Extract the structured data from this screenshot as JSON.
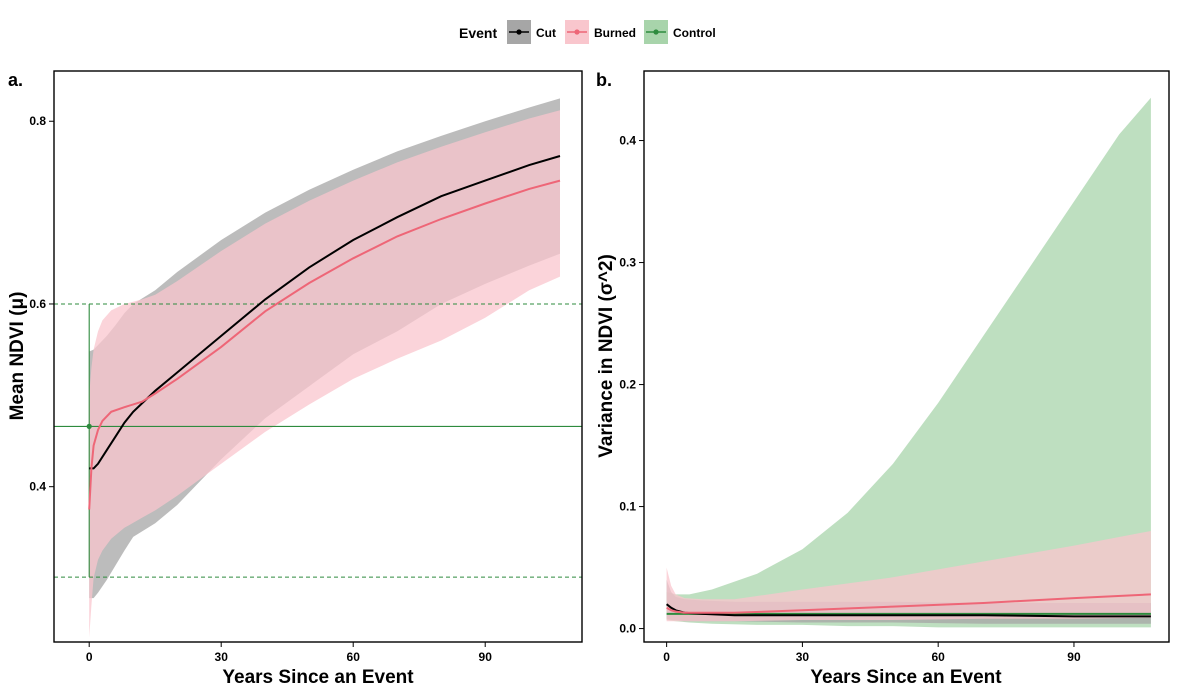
{
  "legend": {
    "title": "Event",
    "items": [
      {
        "label": "Cut",
        "line": "#000000",
        "fill": "#a6a6a6"
      },
      {
        "label": "Burned",
        "line": "#ee6677",
        "fill": "#f9c6cd"
      },
      {
        "label": "Control",
        "line": "#2e8b3e",
        "fill": "#a8d4ab"
      }
    ]
  },
  "chart_data": [
    {
      "type": "line",
      "panel_label": "a.",
      "xlabel": "Years Since an Event",
      "ylabel": "Mean NDVI (μ)",
      "xlim": [
        -8,
        112
      ],
      "ylim": [
        0.23,
        0.855
      ],
      "xticks": [
        0,
        30,
        60,
        90
      ],
      "yticks": [
        0.4,
        0.6,
        0.8
      ],
      "ytick_labels": [
        "0.4",
        "0.6",
        "0.8"
      ],
      "grid": false,
      "series": [
        {
          "name": "Cut",
          "color": "#000000",
          "band_color": "#a6a6a6",
          "x": [
            0,
            1,
            2,
            4,
            6,
            8,
            10,
            15,
            20,
            30,
            40,
            50,
            60,
            70,
            80,
            90,
            100,
            107
          ],
          "mean": [
            0.42,
            0.42,
            0.425,
            0.44,
            0.455,
            0.47,
            0.482,
            0.505,
            0.525,
            0.565,
            0.605,
            0.64,
            0.67,
            0.695,
            0.718,
            0.735,
            0.752,
            0.762
          ],
          "lower": [
            0.278,
            0.278,
            0.284,
            0.298,
            0.314,
            0.33,
            0.345,
            0.36,
            0.38,
            0.43,
            0.475,
            0.51,
            0.545,
            0.57,
            0.6,
            0.622,
            0.642,
            0.655
          ],
          "upper": [
            0.548,
            0.55,
            0.555,
            0.565,
            0.577,
            0.59,
            0.6,
            0.615,
            0.635,
            0.67,
            0.7,
            0.725,
            0.747,
            0.767,
            0.784,
            0.8,
            0.815,
            0.825
          ]
        },
        {
          "name": "Burned",
          "color": "#ee6677",
          "band_color": "#f9c6cd",
          "x": [
            0,
            0.5,
            1,
            2,
            3,
            5,
            8,
            12,
            15,
            20,
            30,
            40,
            50,
            60,
            70,
            80,
            90,
            100,
            107
          ],
          "mean": [
            0.375,
            0.42,
            0.445,
            0.462,
            0.472,
            0.482,
            0.487,
            0.493,
            0.502,
            0.518,
            0.553,
            0.592,
            0.623,
            0.65,
            0.674,
            0.693,
            0.71,
            0.726,
            0.735
          ],
          "lower": [
            0.235,
            0.27,
            0.3,
            0.32,
            0.33,
            0.343,
            0.355,
            0.366,
            0.374,
            0.39,
            0.425,
            0.46,
            0.49,
            0.518,
            0.54,
            0.56,
            0.585,
            0.615,
            0.63
          ],
          "upper": [
            0.5,
            0.53,
            0.55,
            0.57,
            0.582,
            0.593,
            0.6,
            0.605,
            0.61,
            0.625,
            0.658,
            0.688,
            0.713,
            0.735,
            0.755,
            0.772,
            0.788,
            0.803,
            0.812
          ]
        },
        {
          "name": "Control",
          "color": "#2e8b3e",
          "x": [
            0
          ],
          "mean": [
            0.466
          ],
          "reference_value": 0.466,
          "reference_lower": 0.301,
          "reference_upper": 0.6
        }
      ]
    },
    {
      "type": "line",
      "panel_label": "b.",
      "xlabel": "Years Since an Event",
      "ylabel": "Variance in NDVI (σ^2)",
      "xlim": [
        -5,
        111
      ],
      "ylim": [
        -0.011,
        0.457
      ],
      "xticks": [
        0,
        30,
        60,
        90
      ],
      "yticks": [
        0,
        0.1,
        0.2,
        0.3,
        0.4
      ],
      "ytick_labels": [
        "0.0",
        "0.1",
        "0.2",
        "0.3",
        "0.4"
      ],
      "grid": false,
      "series": [
        {
          "name": "Control",
          "color": "#2e8b3e",
          "band_color": "#a8d4ab",
          "x": [
            0,
            2,
            5,
            10,
            20,
            30,
            40,
            50,
            60,
            70,
            80,
            90,
            100,
            107
          ],
          "mean": [
            0.012,
            0.012,
            0.012,
            0.012,
            0.012,
            0.012,
            0.012,
            0.012,
            0.012,
            0.012,
            0.012,
            0.012,
            0.012,
            0.012
          ],
          "lower": [
            0.007,
            0.006,
            0.005,
            0.004,
            0.003,
            0.003,
            0.002,
            0.002,
            0.001,
            0.001,
            0.001,
            0.001,
            0.001,
            0.001
          ],
          "upper": [
            0.03,
            0.028,
            0.028,
            0.032,
            0.045,
            0.065,
            0.095,
            0.135,
            0.185,
            0.24,
            0.295,
            0.35,
            0.405,
            0.435
          ]
        },
        {
          "name": "Cut",
          "color": "#000000",
          "band_color": "#a6a6a6",
          "x": [
            0,
            1,
            2,
            4,
            8,
            15,
            30,
            50,
            70,
            90,
            107
          ],
          "mean": [
            0.02,
            0.017,
            0.015,
            0.013,
            0.012,
            0.011,
            0.011,
            0.011,
            0.011,
            0.01,
            0.01
          ],
          "lower": [
            0.008,
            0.007,
            0.007,
            0.006,
            0.006,
            0.006,
            0.005,
            0.005,
            0.004,
            0.004,
            0.004
          ],
          "upper": [
            0.04,
            0.03,
            0.026,
            0.024,
            0.023,
            0.022,
            0.022,
            0.022,
            0.021,
            0.021,
            0.021
          ]
        },
        {
          "name": "Burned",
          "color": "#ee6677",
          "band_color": "#f9c6cd",
          "x": [
            0,
            1,
            2,
            4,
            8,
            15,
            30,
            50,
            70,
            90,
            107
          ],
          "mean": [
            0.017,
            0.015,
            0.014,
            0.013,
            0.013,
            0.013,
            0.015,
            0.018,
            0.021,
            0.025,
            0.028
          ],
          "lower": [
            0.006,
            0.006,
            0.006,
            0.006,
            0.006,
            0.006,
            0.007,
            0.007,
            0.008,
            0.008,
            0.009
          ],
          "upper": [
            0.05,
            0.035,
            0.028,
            0.025,
            0.024,
            0.024,
            0.032,
            0.042,
            0.055,
            0.068,
            0.08
          ]
        }
      ]
    }
  ]
}
